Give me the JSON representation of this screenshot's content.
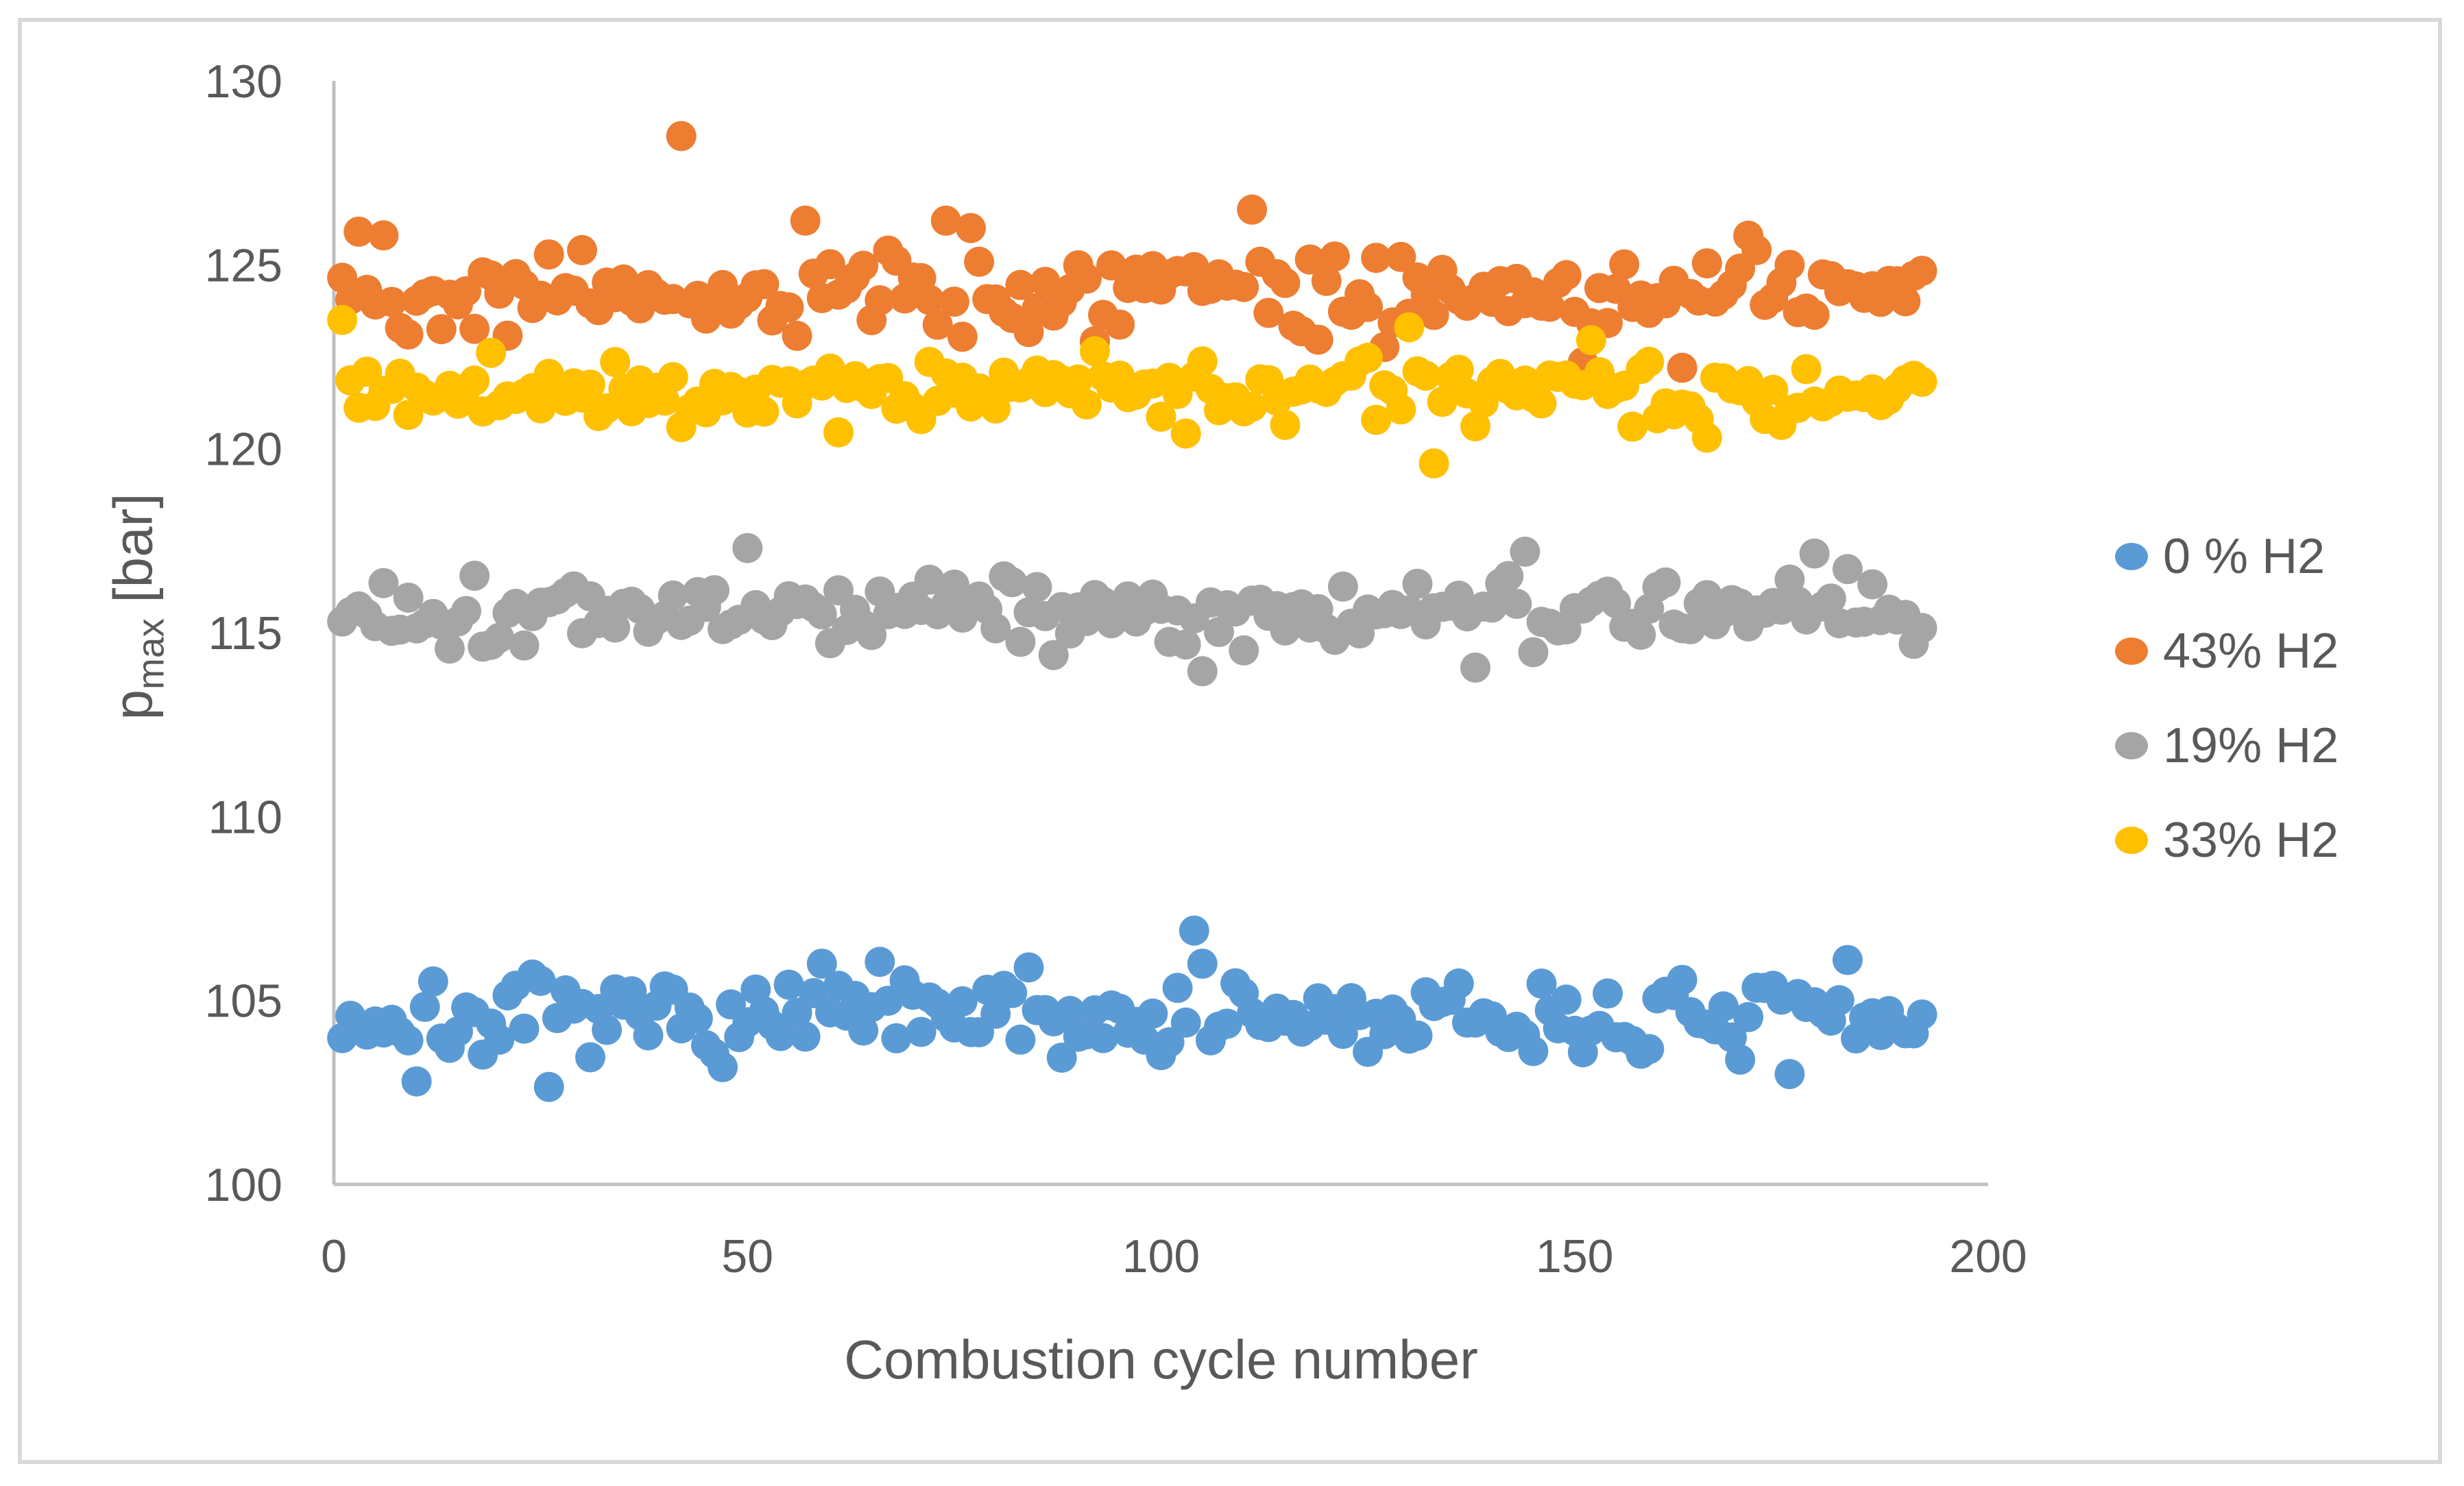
{
  "chart_data": {
    "type": "scatter",
    "title": "",
    "xlabel": "Combustion cycle number",
    "ylabel_main": "p",
    "ylabel_sub": "max",
    "ylabel_unit": "[bar]",
    "x_axis": {
      "min": 0,
      "max": 200,
      "ticks": [
        0,
        50,
        100,
        150,
        200
      ]
    },
    "y_axis": {
      "min": 100,
      "max": 130,
      "ticks": [
        100,
        105,
        110,
        115,
        120,
        125,
        130
      ]
    },
    "grid": false,
    "legend_position": "right",
    "marker_diameter_px": 44,
    "background_color": "#FFFFFF",
    "axis_color": "#C0C0C0",
    "text_color": "#595959",
    "border_color": "#D9D9D9",
    "series": [
      {
        "name": "0 % H2",
        "color": "#5B9BD5",
        "count": 192,
        "x_start": 1,
        "x_step": 1,
        "mean": 104.45,
        "spread": 0.95,
        "y_min": 102.8,
        "y_max": 106.05,
        "seed": 7,
        "outliers": [
          [
            10,
            102.8
          ],
          [
            26,
            102.65
          ],
          [
            59,
            106.0
          ],
          [
            66,
            106.05
          ],
          [
            84,
            105.9
          ],
          [
            104,
            106.9
          ],
          [
            105,
            106.0
          ],
          [
            176,
            103.0
          ],
          [
            183,
            106.1
          ]
        ]
      },
      {
        "name": "43% H2",
        "color": "#ED7D31",
        "count": 192,
        "x_start": 1,
        "x_step": 1,
        "mean": 124.2,
        "spread": 1.0,
        "y_min": 122.5,
        "y_max": 126.0,
        "seed": 42,
        "outliers": [
          [
            3,
            125.9
          ],
          [
            6,
            125.8
          ],
          [
            42,
            128.5
          ],
          [
            57,
            126.2
          ],
          [
            74,
            126.2
          ],
          [
            77,
            126.0
          ],
          [
            111,
            126.5
          ],
          [
            151,
            122.35
          ],
          [
            163,
            122.2
          ]
        ]
      },
      {
        "name": "19% H2",
        "color": "#A5A5A5",
        "count": 192,
        "x_start": 1,
        "x_step": 1,
        "mean": 115.6,
        "spread": 0.85,
        "y_min": 114.1,
        "y_max": 117.0,
        "seed": 1337,
        "outliers": [
          [
            50,
            117.3
          ],
          [
            105,
            113.95
          ],
          [
            138,
            114.05
          ],
          [
            144,
            117.2
          ],
          [
            179,
            117.15
          ]
        ]
      },
      {
        "name": "33% H2",
        "color": "#FFC000",
        "count": 192,
        "x_start": 1,
        "x_step": 1,
        "mean": 121.55,
        "spread": 0.75,
        "y_min": 120.3,
        "y_max": 122.9,
        "seed": 2024,
        "outliers": [
          [
            1,
            123.5
          ],
          [
            92,
            122.65
          ],
          [
            130,
            123.3
          ],
          [
            133,
            119.6
          ],
          [
            152,
            122.95
          ],
          [
            157,
            120.6
          ],
          [
            166,
            120.3
          ]
        ]
      }
    ]
  }
}
